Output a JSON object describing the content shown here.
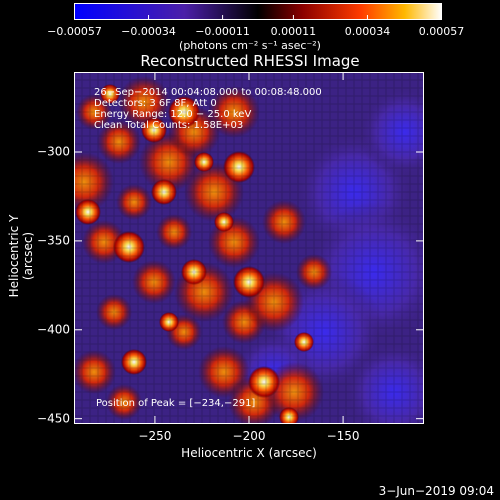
{
  "chart_data": {
    "type": "heatmap",
    "title": "Reconstructed RHESSI Image",
    "xlabel": "Heliocentric X (arcsec)",
    "ylabel": "Heliocentric Y (arcsec)",
    "xlim": [
      -293,
      -107
    ],
    "ylim": [
      -453,
      -255
    ],
    "x_ticks": [
      -250,
      -200,
      -150
    ],
    "y_ticks": [
      -300,
      -350,
      -400,
      -450
    ],
    "x_tick_labels": [
      "−250",
      "−200",
      "−150"
    ],
    "y_tick_labels": [
      "−300",
      "−350",
      "−400",
      "−450"
    ],
    "colorbar": {
      "range": [
        -0.00057,
        0.00057
      ],
      "tick_values": [
        -0.00057,
        -0.00034,
        -0.00011,
        0.00011,
        0.00034,
        0.00057
      ],
      "tick_labels": [
        "−0.00057",
        "−0.00034",
        "−0.00011",
        "0.00011",
        "0.00034",
        "0.00057"
      ],
      "units": "(photons cm⁻² s⁻¹ asec⁻²)"
    },
    "annotations": [
      "26−Sep−2014 00:04:08.000 to 00:08:48.000",
      "Detectors: 3 6F 8F, Att 0",
      "Energy Range: 12.0 − 25.0 keV",
      "Clean    Total Counts: 1.58E+03"
    ],
    "peak_label": "Position of Peak = [−234,−291]",
    "peak": [
      -234,
      -291
    ]
  },
  "footer": {
    "date": "3−Jun−2019 09:04"
  }
}
